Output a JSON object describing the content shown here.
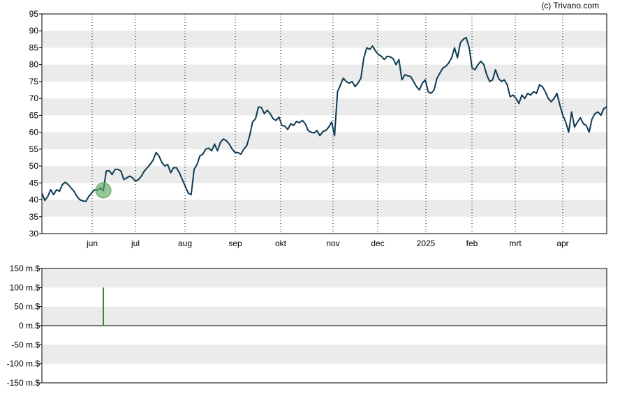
{
  "credit": "(c) Trivano.com",
  "colors": {
    "price_line": "#0d3a52",
    "band": "#ebebeb",
    "marker_fill": "#5aa85f",
    "volume_bar": "#2e8b3a",
    "frame": "#000000"
  },
  "chart_data": [
    {
      "type": "line",
      "ylim": [
        30,
        95
      ],
      "y_ticks": [
        "30",
        "35",
        "40",
        "45",
        "50",
        "55",
        "60",
        "65",
        "70",
        "75",
        "80",
        "85",
        "90",
        "95"
      ],
      "x_ticks": [
        "jun",
        "jul",
        "aug",
        "sep",
        "okt",
        "nov",
        "dec",
        "2025",
        "feb",
        "mrt",
        "apr"
      ],
      "grid": "dotted vertical lines at month ticks, alternating horizontal bands",
      "series": [
        {
          "values": [
            42,
            39.8,
            41,
            43,
            41.5,
            43,
            42.5,
            44.5,
            45.2,
            44.5,
            43.5,
            42.5,
            41,
            40,
            39.7,
            39.5,
            41,
            42,
            43,
            42.8,
            43.5,
            42.7,
            48.5,
            48.6,
            47.5,
            49,
            49,
            48.5,
            46,
            46.5,
            47,
            46.5,
            45.5,
            46,
            47,
            48.5,
            49.5,
            50.5,
            51.8,
            54,
            53,
            51,
            50,
            50.5,
            48,
            49.5,
            49.5,
            48,
            46,
            44,
            42,
            41.5,
            49,
            50.5,
            53,
            53.5,
            55,
            55.3,
            54.5,
            56.5,
            54.5,
            57,
            58,
            57.5,
            56.5,
            55,
            54,
            54,
            53.5,
            55,
            56,
            59,
            63,
            64,
            67.5,
            67.3,
            65.5,
            66.5,
            65.5,
            64,
            63.5,
            64.5,
            62,
            61.8,
            60.8,
            62.5,
            62,
            63.2,
            62.8,
            63.5,
            62.5,
            60.5,
            60,
            59.8,
            60.5,
            59,
            60.2,
            60.5,
            61.5,
            63,
            59,
            72,
            74,
            76,
            75,
            74.5,
            75,
            73.5,
            74.5,
            76,
            82,
            85,
            84.5,
            85.5,
            84,
            83,
            82.5,
            81.5,
            82.5,
            82.3,
            81.8,
            80,
            81.5,
            75.5,
            77,
            76.7,
            76.5,
            75,
            73.5,
            72.5,
            74.5,
            75.5,
            72,
            71.5,
            72.5,
            76,
            77.5,
            79,
            79.5,
            80.5,
            82,
            85,
            82,
            86.5,
            87.5,
            88,
            85,
            79,
            78.5,
            80,
            81,
            80,
            77,
            75,
            75.5,
            78.5,
            76,
            75,
            75.5,
            74,
            70.5,
            71,
            70,
            68.5,
            71,
            70,
            71.5,
            71,
            72,
            71.5,
            74,
            73.5,
            72,
            70,
            69,
            70,
            71.5,
            68,
            65,
            63,
            60,
            66,
            61.5,
            63,
            64.3,
            62.5,
            62,
            60,
            64,
            65.5,
            66,
            65,
            67,
            67.5
          ]
        }
      ],
      "annotations": [
        {
          "x_index": 21,
          "value": 42.8,
          "kind": "marker"
        }
      ]
    },
    {
      "type": "bar",
      "ylim": [
        -150,
        150
      ],
      "y_ticks": [
        "150 m.$",
        "100 m.$",
        "50 m.$",
        "0 m.$",
        "-50 m.$",
        "-100 m.$",
        "-150 m.$"
      ],
      "series": [
        {
          "values": [
            {
              "x_index": 21,
              "value": 100
            }
          ]
        }
      ]
    }
  ]
}
